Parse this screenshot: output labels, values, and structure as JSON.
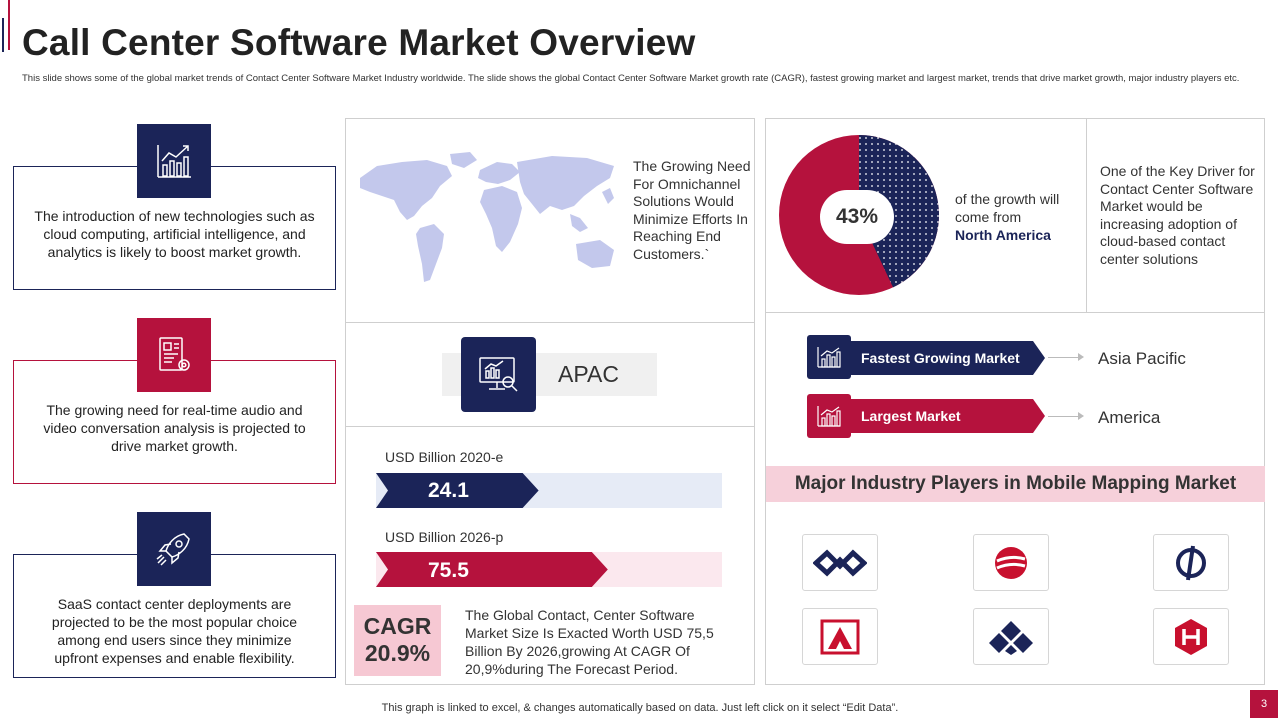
{
  "header": {
    "title": "Call Center Software Market Overview",
    "subtitle": "This slide shows some of the global market trends of Contact Center Software Market Industry worldwide. The slide shows the global Contact Center Software Market growth rate (CAGR), fastest growing market and largest market, trends that drive market growth, major industry players etc."
  },
  "trends": [
    {
      "text": "The introduction of new technologies such as cloud computing, artificial intelligence, and analytics is likely to boost market growth.",
      "icon": "growth-chart-icon",
      "color": "#1b2458"
    },
    {
      "text": "The growing need for real-time audio and video conversation analysis is projected to drive market growth.",
      "icon": "report-settings-icon",
      "color": "#b5123d"
    },
    {
      "text": "SaaS contact center deployments are projected to be the most popular choice among end users since they minimize upfront expenses and enable flexibility.",
      "icon": "rocket-icon",
      "color": "#1b2458"
    }
  ],
  "world": {
    "text": "The Growing Need For Omnichannel Solutions Would Minimize Efforts In Reaching End Customers.`"
  },
  "region": {
    "label": "APAC"
  },
  "usd": {
    "label_2020": "USD Billion 2020-e",
    "value_2020": "24.1",
    "label_2026": "USD Billion 2026-p",
    "value_2026": "75.5",
    "fill_2020": 0.47,
    "fill_2026": 0.67
  },
  "cagr": {
    "label": "CAGR",
    "value": "20.9%",
    "text": "The Global Contact, Center Software Market Size Is Exacted Worth USD 75,5 Billion By 2026,growing At CAGR Of 20,9%during The Forecast Period."
  },
  "growth": {
    "percent": "43%",
    "percent_value": 43,
    "text": "of the growth will come from",
    "region": "North America",
    "driver": "One of the Key Driver for Contact Center Software Market would be increasing adoption of cloud-based contact center solutions"
  },
  "markets": {
    "fastest_label": "Fastest Growing Market",
    "fastest_value": "Asia Pacific",
    "largest_label": "Largest Market",
    "largest_value": "America"
  },
  "players": {
    "title": "Major Industry Players in Mobile Mapping Market"
  },
  "footer": {
    "note": "This graph is linked to excel, & changes automatically based on data. Just left click on it select “Edit Data”.",
    "page": "3"
  },
  "colors": {
    "navy": "#1b2458",
    "crimson": "#b5123d",
    "pink": "#f6d0da"
  }
}
